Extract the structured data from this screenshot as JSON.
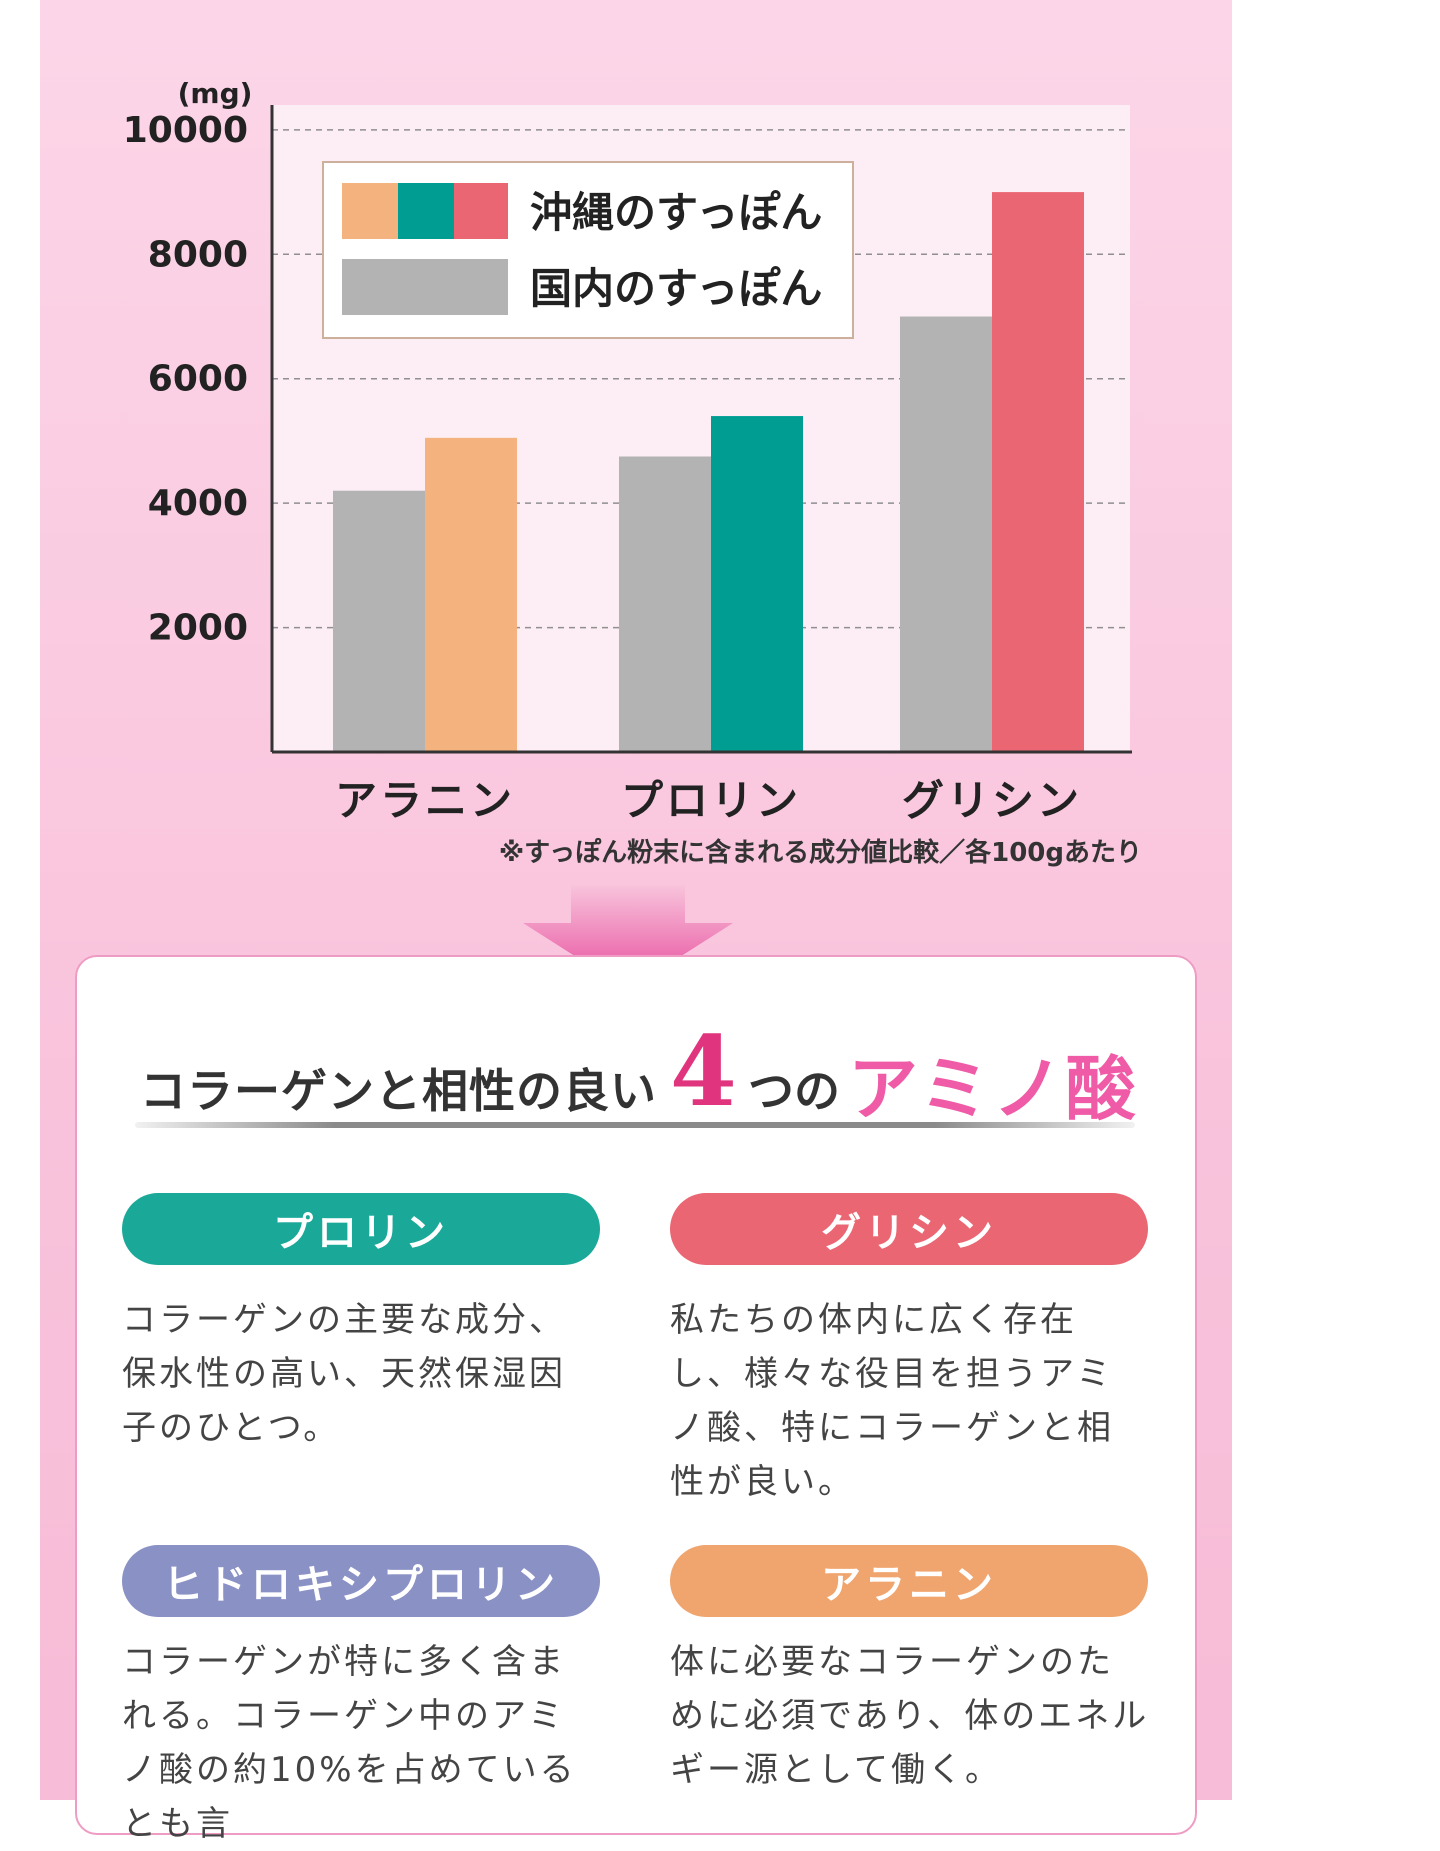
{
  "chart_data": {
    "type": "bar",
    "unit_label": "(mg)",
    "categories": [
      "アラニン",
      "プロリン",
      "グリシン"
    ],
    "series": [
      {
        "name": "国内のすっぽん",
        "values": [
          4200,
          4750,
          7000
        ],
        "color": "#b3b3b3"
      },
      {
        "name": "沖縄のすっぽん",
        "values": [
          5050,
          5400,
          9000
        ],
        "colors": [
          "#f4b27e",
          "#009e92",
          "#ea6673"
        ]
      }
    ],
    "ylim": [
      0,
      10400
    ],
    "yticks": [
      2000,
      4000,
      6000,
      8000,
      10000
    ],
    "grid": true,
    "legend_position": "top-left",
    "note": "※すっぽん粉末に含まれる成分値比較／各100gあたり"
  },
  "colors": {
    "proline": "#1aa898",
    "glycine": "#ea6673",
    "hydroxyproline": "#8a91c4",
    "alanine": "#f0a46e",
    "accent_pink": "#e0357e"
  },
  "section": {
    "heading_pre": "コラーゲンと相性の良い",
    "heading_num": "4",
    "heading_mid": "つの",
    "heading_post": "アミノ酸"
  },
  "aminos": [
    {
      "name": "プロリン",
      "desc": "コラーゲンの主要な成分、保水性の高い、天然保湿因子のひとつ。"
    },
    {
      "name": "グリシン",
      "desc": "私たちの体内に広く存在し、様々な役目を担うアミノ酸、特にコラーゲンと相性が良い。"
    },
    {
      "name": "ヒドロキシプロリン",
      "desc": "コラーゲンが特に多く含まれる。コラーゲン中のアミノ酸の約10%を占めているとも言"
    },
    {
      "name": "アラニン",
      "desc": "体に必要なコラーゲンのために必須であり、体のエネルギー源として働く。"
    }
  ]
}
